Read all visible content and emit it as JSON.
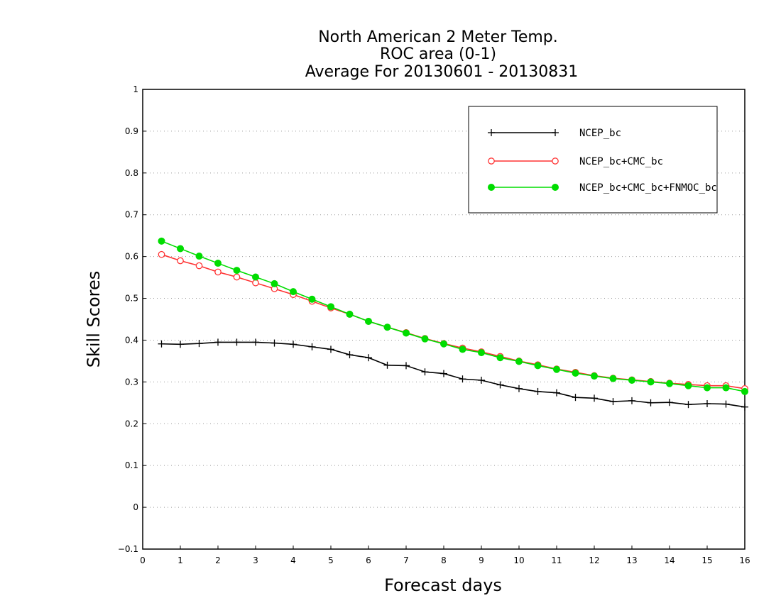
{
  "chart_data": {
    "type": "line",
    "title": [
      "North American 2 Meter Temp.",
      "ROC area (0-1)",
      "Average For 20130601 - 20130831"
    ],
    "xlabel": "Forecast days",
    "ylabel": "Skill Scores",
    "xlim": [
      0,
      16
    ],
    "ylim": [
      -0.1,
      1
    ],
    "xticks": [
      0,
      1,
      2,
      3,
      4,
      5,
      6,
      7,
      8,
      9,
      10,
      11,
      12,
      13,
      14,
      15,
      16
    ],
    "yticks": [
      -0.1,
      0,
      0.1,
      0.2,
      0.3,
      0.4,
      0.5,
      0.6,
      0.7,
      0.8,
      0.9,
      1
    ],
    "ytick_labels": [
      "−0.1",
      "0",
      "0.1",
      "0.2",
      "0.3",
      "0.4",
      "0.5",
      "0.6",
      "0.7",
      "0.8",
      "0.9",
      "1"
    ],
    "grid": "horizontal dotted",
    "legend_position": "top-right",
    "x": [
      0.5,
      1,
      1.5,
      2,
      2.5,
      3,
      3.5,
      4,
      4.5,
      5,
      5.5,
      6,
      6.5,
      7,
      7.5,
      8,
      8.5,
      9,
      9.5,
      10,
      10.5,
      11,
      11.5,
      12,
      12.5,
      13,
      13.5,
      14,
      14.5,
      15,
      15.5,
      16
    ],
    "series": [
      {
        "name": "NCEP_bc",
        "color": "#000000",
        "marker": "plus",
        "values": [
          0.391,
          0.39,
          0.392,
          0.395,
          0.395,
          0.395,
          0.393,
          0.39,
          0.384,
          0.378,
          0.365,
          0.358,
          0.34,
          0.339,
          0.324,
          0.32,
          0.307,
          0.304,
          0.293,
          0.284,
          0.277,
          0.274,
          0.263,
          0.261,
          0.253,
          0.255,
          0.25,
          0.251,
          0.246,
          0.248,
          0.247,
          0.24
        ]
      },
      {
        "name": "NCEP_bc+CMC_bc",
        "color": "#ff3333",
        "marker": "open-circle",
        "values": [
          0.605,
          0.59,
          0.578,
          0.563,
          0.551,
          0.537,
          0.523,
          0.509,
          0.493,
          0.477,
          0.462,
          0.445,
          0.431,
          0.418,
          0.404,
          0.392,
          0.381,
          0.372,
          0.361,
          0.35,
          0.341,
          0.331,
          0.323,
          0.315,
          0.309,
          0.305,
          0.301,
          0.297,
          0.294,
          0.291,
          0.291,
          0.284
        ]
      },
      {
        "name": "NCEP_bc+CMC_bc+FNMOC_bc",
        "color": "#00dd00",
        "marker": "filled-circle",
        "values": [
          0.637,
          0.619,
          0.601,
          0.584,
          0.567,
          0.551,
          0.535,
          0.516,
          0.498,
          0.48,
          0.462,
          0.445,
          0.431,
          0.417,
          0.403,
          0.391,
          0.378,
          0.37,
          0.358,
          0.349,
          0.339,
          0.33,
          0.321,
          0.314,
          0.308,
          0.304,
          0.3,
          0.296,
          0.291,
          0.286,
          0.286,
          0.277
        ]
      }
    ]
  }
}
